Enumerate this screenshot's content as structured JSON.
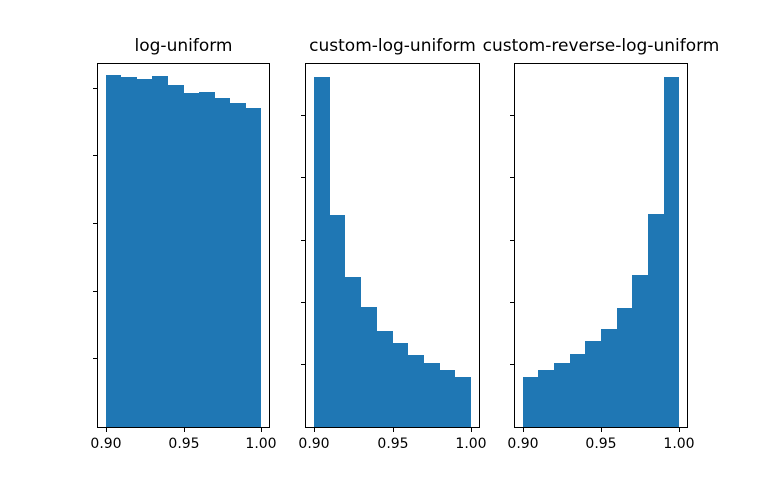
{
  "figure": {
    "background_color": "#ffffff",
    "bar_color": "#1f77b4",
    "spine_color": "#000000",
    "text_color": "#000000"
  },
  "chart_data": [
    {
      "type": "bar",
      "subtype": "histogram",
      "title": "log-uniform",
      "xlabel": "",
      "ylabel": "",
      "bin_edges": [
        0.9,
        0.91,
        0.92,
        0.93,
        0.94,
        0.95,
        0.96,
        0.97,
        0.98,
        0.99,
        1.0
      ],
      "values": [
        1041,
        1034,
        1029,
        1037,
        1012,
        988,
        991,
        973,
        958,
        943
      ],
      "xlim": [
        0.895,
        1.005
      ],
      "ylim": [
        0,
        1073
      ],
      "xticks": [
        {
          "value": 0.9,
          "label": "0.90"
        },
        {
          "value": 0.95,
          "label": "0.95"
        },
        {
          "value": 1.0,
          "label": "1.00"
        }
      ],
      "yticks": [
        200,
        400,
        600,
        800,
        1000
      ],
      "ytick_labels_visible": false,
      "grid": false,
      "legend": "none"
    },
    {
      "type": "bar",
      "subtype": "histogram",
      "title": "custom-log-uniform",
      "xlabel": "",
      "ylabel": "",
      "bin_edges": [
        0.9,
        0.91,
        0.92,
        0.93,
        0.94,
        0.95,
        0.96,
        0.97,
        0.98,
        0.99,
        1.0
      ],
      "values": [
        2816,
        1704,
        1210,
        962,
        770,
        678,
        578,
        514,
        456,
        406
      ],
      "xlim": [
        0.895,
        1.005
      ],
      "ylim": [
        0,
        2920
      ],
      "xticks": [
        {
          "value": 0.9,
          "label": "0.90"
        },
        {
          "value": 0.95,
          "label": "0.95"
        },
        {
          "value": 1.0,
          "label": "1.00"
        }
      ],
      "yticks": [
        500,
        1000,
        1500,
        2000,
        2500
      ],
      "ytick_labels_visible": false,
      "grid": false,
      "legend": "none"
    },
    {
      "type": "bar",
      "subtype": "histogram",
      "title": "custom-reverse-log-uniform",
      "xlabel": "",
      "ylabel": "",
      "bin_edges": [
        0.9,
        0.91,
        0.92,
        0.93,
        0.94,
        0.95,
        0.96,
        0.97,
        0.98,
        0.99,
        1.0
      ],
      "values": [
        406,
        456,
        514,
        584,
        688,
        786,
        954,
        1224,
        1714,
        2816
      ],
      "xlim": [
        0.895,
        1.005
      ],
      "ylim": [
        0,
        2920
      ],
      "xticks": [
        {
          "value": 0.9,
          "label": "0.90"
        },
        {
          "value": 0.95,
          "label": "0.95"
        },
        {
          "value": 1.0,
          "label": "1.00"
        }
      ],
      "yticks": [
        500,
        1000,
        1500,
        2000,
        2500
      ],
      "ytick_labels_visible": false,
      "grid": false,
      "legend": "none"
    }
  ]
}
